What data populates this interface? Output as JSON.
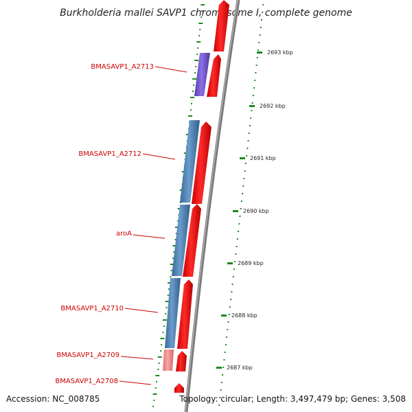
{
  "title": "Burkholderia mallei SAVP1 chromosome I, complete genome",
  "accession_text": "Accession: NC_008785",
  "summary_text": "Topology: circular; Length: 3,497,479 bp; Genes: 3,508",
  "colors": {
    "backbone": "#808080",
    "forward_cds": "#ee0000",
    "reverse_cds": "#4a7fb0",
    "reverse_rna": "#7755cc",
    "faded_cds": "#ee8888",
    "gc_ticks": "#1a8a1a",
    "label": "#cc0000"
  },
  "scale_ticks": [
    "2693 kbp",
    "2692 kbp",
    "2691 kbp",
    "2690 kbp",
    "2689 kbp",
    "2688 kbp",
    "2687 kbp"
  ],
  "gene_labels": [
    "BMASAVP1_A2713",
    "BMASAVP1_A2712",
    "aroA",
    "BMASAVP1_A2710",
    "BMASAVP1_A2709",
    "BMASAVP1_A2708"
  ]
}
